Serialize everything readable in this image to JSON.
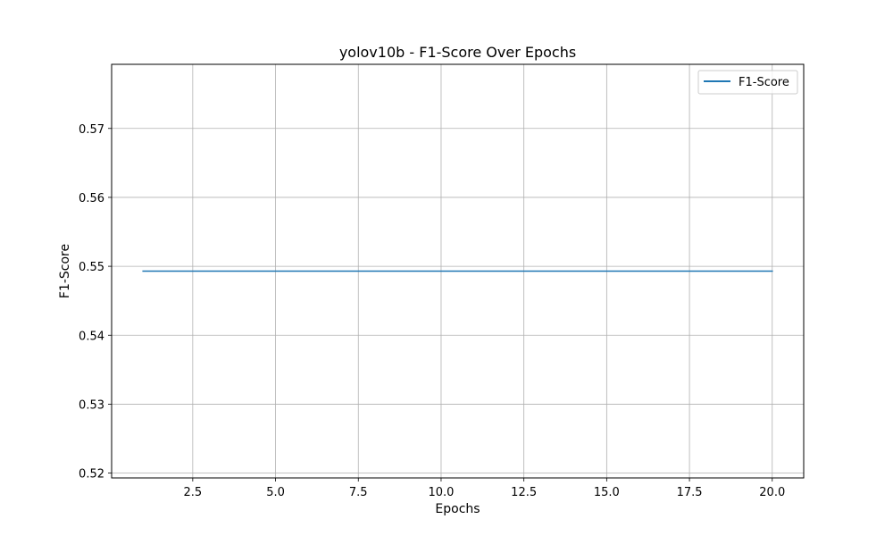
{
  "chart_data": {
    "type": "line",
    "title": "yolov10b - F1-Score Over Epochs",
    "xlabel": "Epochs",
    "ylabel": "F1-Score",
    "xlim": [
      0.05,
      20.95
    ],
    "ylim": [
      0.5193,
      0.5793
    ],
    "xticks": [
      2.5,
      5.0,
      7.5,
      10.0,
      12.5,
      15.0,
      17.5,
      20.0
    ],
    "xtick_labels": [
      "2.5",
      "5.0",
      "7.5",
      "10.0",
      "12.5",
      "15.0",
      "17.5",
      "20.0"
    ],
    "yticks": [
      0.52,
      0.53,
      0.54,
      0.55,
      0.56,
      0.57
    ],
    "ytick_labels": [
      "0.52",
      "0.53",
      "0.54",
      "0.55",
      "0.56",
      "0.57"
    ],
    "grid": true,
    "legend_position": "upper right",
    "series": [
      {
        "name": "F1-Score",
        "color": "#1f77b4",
        "x": [
          1,
          2,
          3,
          4,
          5,
          6,
          7,
          8,
          9,
          10,
          11,
          12,
          13,
          14,
          15,
          16,
          17,
          20
        ],
        "y": [
          0.5493,
          0.5493,
          0.5493,
          0.5493,
          0.5493,
          0.5493,
          0.5493,
          0.5493,
          0.5493,
          0.5493,
          0.5493,
          0.5493,
          0.5493,
          0.5493,
          0.5493,
          0.5493,
          0.5493,
          0.5493
        ]
      }
    ]
  }
}
